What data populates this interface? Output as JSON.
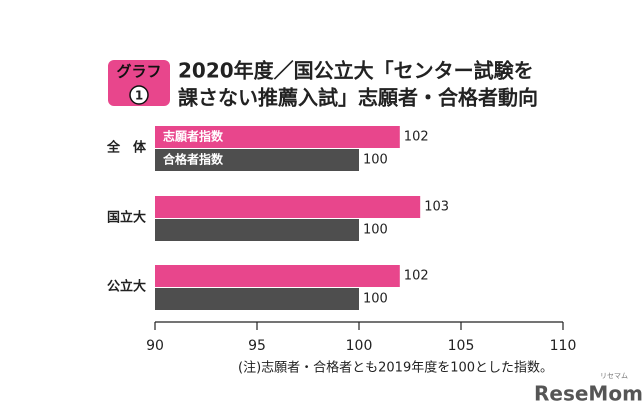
{
  "chart_data": {
    "type": "hbar",
    "badge": {
      "label": "グラフ",
      "number": "1"
    },
    "title_lines": [
      "2020年度／国公立大「センター試験を",
      "課さない推薦入試」志願者・合格者動向"
    ],
    "categories": [
      "全　体",
      "国立大",
      "公立大"
    ],
    "series": [
      {
        "name": "志願者指数",
        "color": "#e8468c",
        "values": [
          102,
          103,
          102
        ]
      },
      {
        "name": "合格者指数",
        "color": "#4e4e4e",
        "values": [
          100,
          100,
          100
        ]
      }
    ],
    "xlim": [
      90,
      110
    ],
    "xticks": [
      90,
      95,
      100,
      105,
      110
    ],
    "note": "(注)志願者・合格者とも2019年度を100とした指数。",
    "watermark": {
      "main": "ReseMom",
      "sub": "リセマム"
    }
  }
}
